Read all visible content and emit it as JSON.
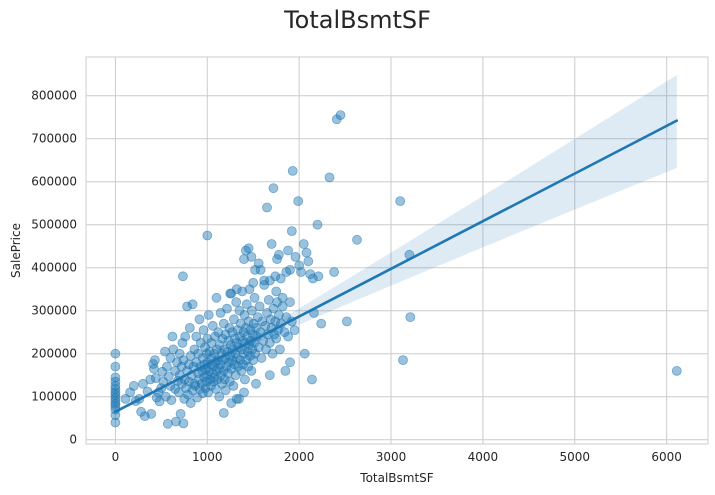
{
  "chart_data": {
    "type": "scatter",
    "title": "TotalBsmtSF",
    "xlabel": "TotalBsmtSF",
    "ylabel": "SalePrice",
    "xlim": [
      -320,
      6450
    ],
    "ylim": [
      -10000,
      890000
    ],
    "xticks": [
      0,
      1000,
      2000,
      3000,
      4000,
      5000,
      6000
    ],
    "yticks": [
      0,
      100000,
      200000,
      300000,
      400000,
      500000,
      600000,
      700000,
      800000
    ],
    "grid": true,
    "colors": {
      "points": "#1f77b4",
      "line": "#1f77b4",
      "band": "#1f77b4",
      "grid": "#cccccc",
      "background": "#ffffff"
    },
    "points": [
      [
        0,
        200000
      ],
      [
        0,
        170000
      ],
      [
        0,
        145000
      ],
      [
        0,
        135000
      ],
      [
        0,
        125000
      ],
      [
        0,
        118000
      ],
      [
        0,
        110000
      ],
      [
        0,
        104000
      ],
      [
        0,
        97000
      ],
      [
        0,
        90000
      ],
      [
        0,
        84000
      ],
      [
        0,
        78000
      ],
      [
        0,
        70000
      ],
      [
        0,
        57000
      ],
      [
        0,
        40000
      ],
      [
        110,
        95000
      ],
      [
        160,
        110000
      ],
      [
        200,
        125000
      ],
      [
        220,
        90000
      ],
      [
        260,
        95000
      ],
      [
        280,
        65000
      ],
      [
        300,
        130000
      ],
      [
        320,
        55000
      ],
      [
        350,
        112000
      ],
      [
        380,
        140000
      ],
      [
        390,
        60000
      ],
      [
        410,
        176000
      ],
      [
        420,
        165000
      ],
      [
        430,
        185000
      ],
      [
        440,
        143000
      ],
      [
        450,
        98000
      ],
      [
        470,
        110000
      ],
      [
        480,
        89000
      ],
      [
        500,
        120000
      ],
      [
        510,
        158000
      ],
      [
        520,
        135000
      ],
      [
        540,
        205000
      ],
      [
        550,
        100000
      ],
      [
        560,
        170000
      ],
      [
        570,
        37000
      ],
      [
        580,
        147000
      ],
      [
        600,
        125000
      ],
      [
        600,
        190000
      ],
      [
        610,
        92000
      ],
      [
        620,
        240000
      ],
      [
        630,
        210000
      ],
      [
        650,
        118000
      ],
      [
        650,
        160000
      ],
      [
        660,
        42000
      ],
      [
        670,
        180000
      ],
      [
        680,
        137000
      ],
      [
        690,
        110000
      ],
      [
        700,
        150000
      ],
      [
        700,
        200000
      ],
      [
        710,
        60000
      ],
      [
        720,
        170000
      ],
      [
        720,
        130000
      ],
      [
        730,
        225000
      ],
      [
        735,
        380000
      ],
      [
        740,
        38000
      ],
      [
        740,
        185000
      ],
      [
        750,
        95000
      ],
      [
        755,
        140000
      ],
      [
        760,
        240000
      ],
      [
        770,
        120000
      ],
      [
        780,
        160000
      ],
      [
        780,
        310000
      ],
      [
        790,
        105000
      ],
      [
        800,
        175000
      ],
      [
        800,
        135000
      ],
      [
        810,
        260000
      ],
      [
        820,
        85000
      ],
      [
        820,
        195000
      ],
      [
        830,
        150000
      ],
      [
        840,
        115000
      ],
      [
        840,
        315000
      ],
      [
        850,
        170000
      ],
      [
        860,
        210000
      ],
      [
        860,
        130000
      ],
      [
        870,
        125000
      ],
      [
        880,
        180000
      ],
      [
        880,
        240000
      ],
      [
        890,
        98000
      ],
      [
        900,
        155000
      ],
      [
        900,
        200000
      ],
      [
        910,
        140000
      ],
      [
        915,
        280000
      ],
      [
        920,
        118000
      ],
      [
        925,
        170000
      ],
      [
        930,
        225000
      ],
      [
        940,
        130000
      ],
      [
        945,
        160000
      ],
      [
        950,
        190000
      ],
      [
        950,
        108000
      ],
      [
        960,
        255000
      ],
      [
        965,
        145000
      ],
      [
        970,
        175000
      ],
      [
        975,
        215000
      ],
      [
        980,
        120000
      ],
      [
        985,
        165000
      ],
      [
        990,
        135000
      ],
      [
        995,
        200000
      ],
      [
        1000,
        150000
      ],
      [
        1000,
        235000
      ],
      [
        1005,
        180000
      ],
      [
        1010,
        110000
      ],
      [
        1015,
        290000
      ],
      [
        1020,
        160000
      ],
      [
        1025,
        205000
      ],
      [
        1030,
        140000
      ],
      [
        1035,
        175000
      ],
      [
        1040,
        125000
      ],
      [
        1045,
        225000
      ],
      [
        1050,
        190000
      ],
      [
        1055,
        155000
      ],
      [
        1060,
        265000
      ],
      [
        1065,
        135000
      ],
      [
        1070,
        170000
      ],
      [
        1075,
        200000
      ],
      [
        1080,
        145000
      ],
      [
        1085,
        240000
      ],
      [
        1090,
        180000
      ],
      [
        1095,
        118000
      ],
      [
        1100,
        160000
      ],
      [
        1100,
        330000
      ],
      [
        1105,
        210000
      ],
      [
        1110,
        140000
      ],
      [
        1115,
        185000
      ],
      [
        1120,
        250000
      ],
      [
        1125,
        165000
      ],
      [
        1130,
        100000
      ],
      [
        1135,
        220000
      ],
      [
        1140,
        175000
      ],
      [
        1145,
        295000
      ],
      [
        1150,
        150000
      ],
      [
        1155,
        200000
      ],
      [
        1160,
        130000
      ],
      [
        1165,
        235000
      ],
      [
        1170,
        185000
      ],
      [
        1175,
        160000
      ],
      [
        1180,
        270000
      ],
      [
        1185,
        210000
      ],
      [
        1190,
        140000
      ],
      [
        1195,
        190000
      ],
      [
        1200,
        245000
      ],
      [
        1200,
        115000
      ],
      [
        1210,
        170000
      ],
      [
        1215,
        305000
      ],
      [
        1220,
        205000
      ],
      [
        1225,
        155000
      ],
      [
        1230,
        230000
      ],
      [
        1235,
        180000
      ],
      [
        1240,
        260000
      ],
      [
        1245,
        135000
      ],
      [
        1250,
        195000
      ],
      [
        1255,
        220000
      ],
      [
        1260,
        340000
      ],
      [
        1265,
        165000
      ],
      [
        1270,
        250000
      ],
      [
        1275,
        185000
      ],
      [
        1280,
        210000
      ],
      [
        1285,
        125000
      ],
      [
        1290,
        280000
      ],
      [
        1295,
        175000
      ],
      [
        1300,
        235000
      ],
      [
        1305,
        200000
      ],
      [
        1310,
        150000
      ],
      [
        1315,
        320000
      ],
      [
        1320,
        225000
      ],
      [
        1325,
        190000
      ],
      [
        1330,
        255000
      ],
      [
        1335,
        170000
      ],
      [
        1340,
        215000
      ],
      [
        1345,
        95000
      ],
      [
        1350,
        300000
      ],
      [
        1355,
        240000
      ],
      [
        1360,
        185000
      ],
      [
        1365,
        270000
      ],
      [
        1370,
        160000
      ],
      [
        1375,
        210000
      ],
      [
        1380,
        345000
      ],
      [
        1385,
        230000
      ],
      [
        1390,
        175000
      ],
      [
        1395,
        250000
      ],
      [
        1400,
        200000
      ],
      [
        1405,
        290000
      ],
      [
        1410,
        140000
      ],
      [
        1415,
        225000
      ],
      [
        1420,
        260000
      ],
      [
        1425,
        185000
      ],
      [
        1430,
        315000
      ],
      [
        1435,
        240000
      ],
      [
        1440,
        205000
      ],
      [
        1445,
        170000
      ],
      [
        1450,
        275000
      ],
      [
        1455,
        220000
      ],
      [
        1460,
        350000
      ],
      [
        1465,
        195000
      ],
      [
        1470,
        255000
      ],
      [
        1475,
        230000
      ],
      [
        1480,
        160000
      ],
      [
        1485,
        300000
      ],
      [
        1490,
        210000
      ],
      [
        1495,
        245000
      ],
      [
        1500,
        185000
      ],
      [
        1505,
        270000
      ],
      [
        1510,
        225000
      ],
      [
        1515,
        330000
      ],
      [
        1520,
        200000
      ],
      [
        1530,
        260000
      ],
      [
        1540,
        240000
      ],
      [
        1550,
        285000
      ],
      [
        1560,
        215000
      ],
      [
        1570,
        310000
      ],
      [
        1580,
        250000
      ],
      [
        1590,
        190000
      ],
      [
        1600,
        275000
      ],
      [
        1610,
        230000
      ],
      [
        1620,
        360000
      ],
      [
        1630,
        265000
      ],
      [
        1640,
        210000
      ],
      [
        1650,
        295000
      ],
      [
        1660,
        245000
      ],
      [
        1670,
        325000
      ],
      [
        1680,
        225000
      ],
      [
        1690,
        280000
      ],
      [
        1700,
        260000
      ],
      [
        1710,
        200000
      ],
      [
        1720,
        305000
      ],
      [
        1730,
        245000
      ],
      [
        1740,
        275000
      ],
      [
        1750,
        235000
      ],
      [
        1760,
        320000
      ],
      [
        1770,
        255000
      ],
      [
        1780,
        290000
      ],
      [
        1790,
        210000
      ],
      [
        1800,
        270000
      ],
      [
        1820,
        310000
      ],
      [
        1840,
        250000
      ],
      [
        1860,
        285000
      ],
      [
        1880,
        240000
      ],
      [
        1900,
        320000
      ],
      [
        1920,
        275000
      ],
      [
        1950,
        255000
      ],
      [
        1000,
        475000
      ],
      [
        1250,
        340000
      ],
      [
        1320,
        350000
      ],
      [
        1400,
        420000
      ],
      [
        1420,
        440000
      ],
      [
        1450,
        445000
      ],
      [
        1480,
        425000
      ],
      [
        1500,
        365000
      ],
      [
        1520,
        395000
      ],
      [
        1560,
        410000
      ],
      [
        1580,
        395000
      ],
      [
        1620,
        370000
      ],
      [
        1650,
        540000
      ],
      [
        1680,
        370000
      ],
      [
        1700,
        455000
      ],
      [
        1720,
        585000
      ],
      [
        1740,
        380000
      ],
      [
        1750,
        345000
      ],
      [
        1760,
        420000
      ],
      [
        1780,
        430000
      ],
      [
        1800,
        375000
      ],
      [
        1820,
        330000
      ],
      [
        1860,
        390000
      ],
      [
        1880,
        440000
      ],
      [
        1900,
        395000
      ],
      [
        1920,
        485000
      ],
      [
        1930,
        625000
      ],
      [
        1960,
        425000
      ],
      [
        1990,
        555000
      ],
      [
        2000,
        405000
      ],
      [
        2020,
        390000
      ],
      [
        2050,
        455000
      ],
      [
        2080,
        435000
      ],
      [
        2100,
        415000
      ],
      [
        2120,
        385000
      ],
      [
        2150,
        375000
      ],
      [
        2160,
        295000
      ],
      [
        2200,
        500000
      ],
      [
        2210,
        380000
      ],
      [
        2240,
        270000
      ],
      [
        2330,
        610000
      ],
      [
        2380,
        390000
      ],
      [
        2410,
        745000
      ],
      [
        2450,
        755000
      ],
      [
        2520,
        275000
      ],
      [
        2630,
        465000
      ],
      [
        2140,
        140000
      ],
      [
        2060,
        200000
      ],
      [
        1900,
        180000
      ],
      [
        1850,
        160000
      ],
      [
        1680,
        150000
      ],
      [
        1530,
        130000
      ],
      [
        1400,
        110000
      ],
      [
        1320,
        95000
      ],
      [
        1260,
        85000
      ],
      [
        1180,
        62000
      ],
      [
        3100,
        555000
      ],
      [
        3130,
        185000
      ],
      [
        3200,
        430000
      ],
      [
        3210,
        285000
      ],
      [
        6110,
        160000
      ]
    ],
    "regression": {
      "x_start": 0,
      "x_end": 6110,
      "y_start": 65000,
      "y_end": 742000,
      "band_upper_end": 848000,
      "band_lower_end": 632000
    }
  }
}
